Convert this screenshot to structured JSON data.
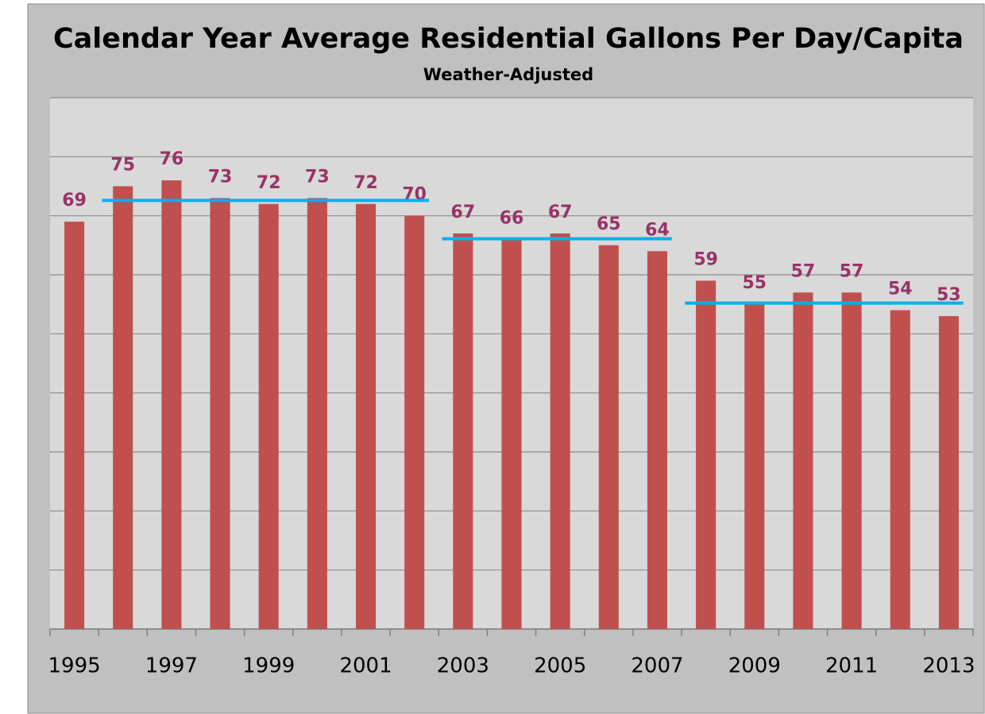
{
  "chart_data": {
    "type": "bar",
    "title": "Calendar Year Average Residential Gallons Per Day/Capita",
    "subtitle": "Weather-Adjusted",
    "categories": [
      "1995",
      null,
      "1997",
      null,
      "1999",
      null,
      "2001",
      null,
      "2003",
      null,
      "2005",
      null,
      "2007",
      null,
      "2009",
      null,
      "2011",
      null,
      "2013"
    ],
    "values": [
      69,
      75,
      76,
      73,
      72,
      73,
      72,
      70,
      67,
      66,
      67,
      65,
      64,
      59,
      55,
      57,
      57,
      54,
      53
    ],
    "color": "#c0504d",
    "label_color": "#993366",
    "ylim": [
      0,
      90
    ],
    "yticks": [
      0,
      10,
      20,
      30,
      40,
      50,
      60,
      70,
      80,
      90
    ],
    "grid": true,
    "trend_lines": [
      {
        "start": 1,
        "end": 7,
        "value": 72.6
      },
      {
        "start": 8,
        "end": 12,
        "value": 66.1
      },
      {
        "start": 13,
        "end": 18,
        "value": 55.2
      }
    ],
    "trend_color": "#00b0f0"
  }
}
